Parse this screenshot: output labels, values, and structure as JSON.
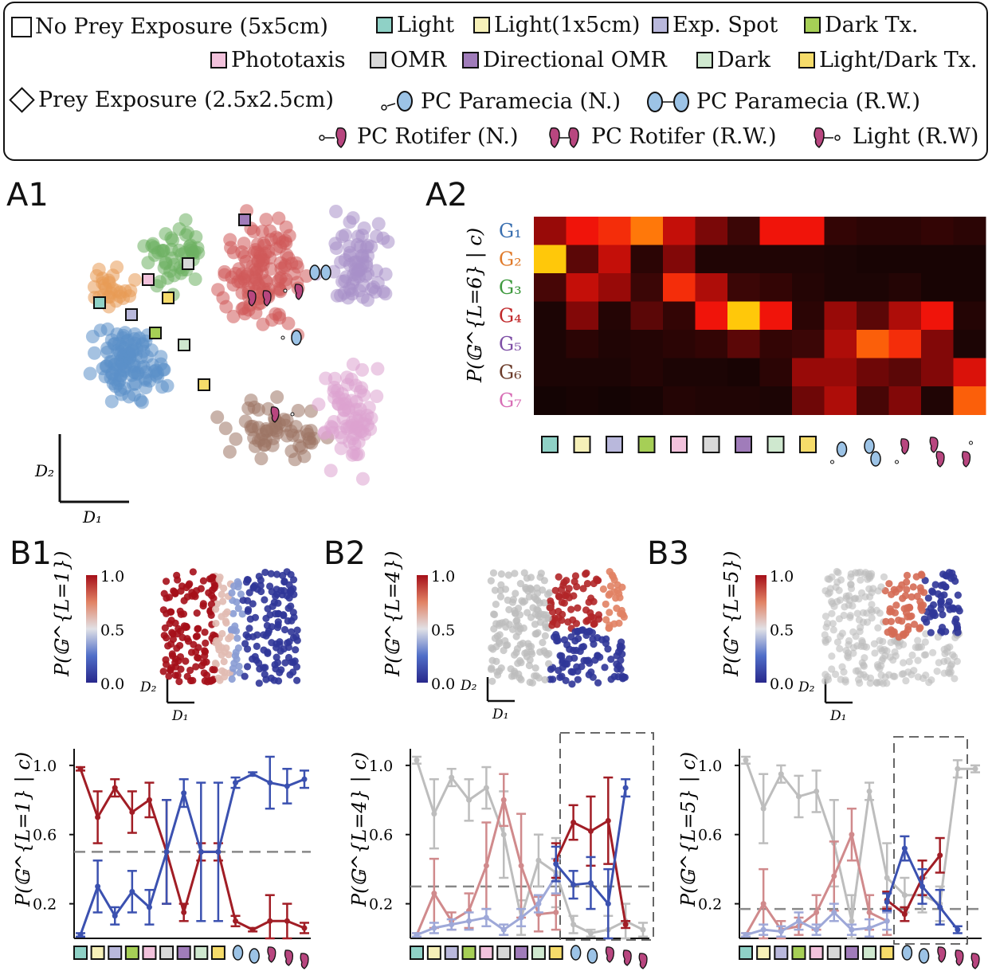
{
  "legend": {
    "no_prey_label": "No Prey Exposure (5x5cm)",
    "prey_label": "Prey Exposure (2.5x2.5cm)",
    "conditions": [
      {
        "label": "Light",
        "color": "#8fd1c6"
      },
      {
        "label": "Light(1x5cm)",
        "color": "#f6f0b8"
      },
      {
        "label": "Exp. Spot",
        "color": "#b9b8dc"
      },
      {
        "label": "Dark Tx.",
        "color": "#a6cf56"
      },
      {
        "label": "Phototaxis",
        "color": "#f2c2dc"
      },
      {
        "label": "OMR",
        "color": "#d8d8d8"
      },
      {
        "label": "Directional OMR",
        "color": "#a07cba"
      },
      {
        "label": "Dark",
        "color": "#cfe8cf"
      },
      {
        "label": "Light/Dark Tx.",
        "color": "#f6dc6a"
      }
    ],
    "prey_conditions": [
      {
        "label": "PC Paramecia (N.)",
        "icon": "paramecia-single-icon"
      },
      {
        "label": "PC Paramecia (R.W.)",
        "icon": "paramecia-pair-icon"
      },
      {
        "label": "PC Rotifer (N.)",
        "icon": "rotifer-single-icon"
      },
      {
        "label": "PC Rotifer (R.W.)",
        "icon": "rotifer-pair-icon"
      },
      {
        "label": "Light (R.W)",
        "icon": "rotifer-light-icon"
      }
    ]
  },
  "panels": {
    "a1": "A1",
    "a2": "A2",
    "b1": "B1",
    "b2": "B2",
    "b3": "B3"
  },
  "axes": {
    "d1": "D₁",
    "d2": "D₂"
  },
  "heatmap": {
    "ylabel": "P(𝔾^{L=6} | c)",
    "rows": [
      "G₁",
      "G₂",
      "G₃",
      "G₄",
      "G₅",
      "G₆",
      "G₇"
    ],
    "row_colors": [
      "#3a6fb0",
      "#e07a2a",
      "#3f9a3f",
      "#c0282a",
      "#7e4fa6",
      "#6b3b2a",
      "#d86fb6"
    ],
    "values": [
      [
        0.35,
        0.55,
        0.6,
        0.75,
        0.45,
        0.28,
        0.12,
        0.55,
        0.55,
        0.1,
        0.08,
        0.08,
        0.1,
        0.08
      ],
      [
        0.95,
        0.2,
        0.45,
        0.08,
        0.3,
        0.05,
        0.05,
        0.05,
        0.05,
        0.04,
        0.03,
        0.03,
        0.03,
        0.03
      ],
      [
        0.15,
        0.45,
        0.35,
        0.12,
        0.6,
        0.4,
        0.12,
        0.1,
        0.06,
        0.04,
        0.04,
        0.06,
        0.03,
        0.03
      ],
      [
        0.04,
        0.3,
        0.06,
        0.2,
        0.1,
        0.55,
        0.95,
        0.55,
        0.08,
        0.35,
        0.2,
        0.4,
        0.55,
        0.06
      ],
      [
        0.04,
        0.08,
        0.05,
        0.06,
        0.08,
        0.1,
        0.2,
        0.1,
        0.12,
        0.4,
        0.7,
        0.6,
        0.3,
        0.04
      ],
      [
        0.04,
        0.04,
        0.04,
        0.06,
        0.04,
        0.04,
        0.03,
        0.08,
        0.35,
        0.35,
        0.25,
        0.2,
        0.3,
        0.5
      ],
      [
        0.02,
        0.03,
        0.02,
        0.03,
        0.06,
        0.05,
        0.05,
        0.04,
        0.25,
        0.4,
        0.15,
        0.3,
        0.05,
        0.7
      ]
    ]
  },
  "colorbars": [
    {
      "label": "P(𝔾^{L=1})",
      "ticks": [
        "1.0",
        "0.5",
        "0.0"
      ]
    },
    {
      "label": "P(𝔾^{L=4})",
      "ticks": [
        "1.0",
        "0.5",
        "0.0"
      ]
    },
    {
      "label": "P(𝔾^{L=5})",
      "ticks": [
        "1.0",
        "0.5",
        "0.0"
      ]
    }
  ],
  "chart_data": [
    {
      "type": "line",
      "panel": "B1",
      "ylabel": "P(𝔾^{L=1} | c)",
      "yticks": [
        "1.0",
        "0.6",
        "0.2"
      ],
      "ylim": [
        0.0,
        1.05
      ],
      "chance_level": 0.5,
      "series": [
        {
          "color": "#a11d25",
          "values": [
            0.98,
            0.7,
            0.87,
            0.73,
            0.8,
            0.5,
            0.15,
            0.5,
            0.5,
            0.1,
            0.05,
            0.1,
            0.1,
            0.06
          ],
          "err": [
            0.01,
            0.15,
            0.05,
            0.12,
            0.1,
            0.3,
            0.05,
            0.05,
            0.05,
            0.03,
            0.01,
            0.15,
            0.1,
            0.03
          ]
        },
        {
          "color": "#3b51b0",
          "values": [
            0.02,
            0.3,
            0.13,
            0.27,
            0.18,
            0.5,
            0.84,
            0.5,
            0.5,
            0.9,
            0.95,
            0.9,
            0.88,
            0.92
          ],
          "err": [
            0.01,
            0.15,
            0.05,
            0.12,
            0.1,
            0.3,
            0.08,
            0.4,
            0.4,
            0.03,
            0.01,
            0.15,
            0.1,
            0.05
          ]
        }
      ]
    },
    {
      "type": "line",
      "panel": "B2",
      "ylabel": "P(𝔾^{L=4} | c)",
      "yticks": [
        "1.0",
        "0.6",
        "0.2"
      ],
      "ylim": [
        0.0,
        1.05
      ],
      "chance_level": 0.3,
      "series": [
        {
          "color": "#bdbdbd",
          "values": [
            1.03,
            0.72,
            0.93,
            0.8,
            0.87,
            0.6,
            0.12,
            0.45,
            0.38,
            0.08,
            0.03,
            0.05,
            0.1,
            0.05
          ],
          "err": [
            0.02,
            0.2,
            0.05,
            0.12,
            0.12,
            0.25,
            0.1,
            0.15,
            0.2,
            0.05,
            0.02,
            0.08,
            0.1,
            0.04
          ]
        },
        {
          "color": "#d08a8c",
          "values": [
            0.02,
            0.26,
            0.1,
            0.16,
            0.42,
            0.8,
            0.42,
            0.14,
            0.15,
            0.0,
            0.0,
            0.0,
            0.0,
            0.0
          ],
          "err": [
            0.01,
            0.2,
            0.05,
            0.1,
            0.25,
            0.15,
            0.3,
            0.1,
            0.1,
            0.0,
            0.0,
            0.0,
            0.0,
            0.0
          ]
        },
        {
          "color": "#9ea8d8",
          "values": [
            0.02,
            0.06,
            0.08,
            0.1,
            0.12,
            0.05,
            0.12,
            0.2,
            0.36,
            0.0,
            0.0,
            0.0,
            0.0,
            0.0
          ],
          "err": [
            0.01,
            0.03,
            0.03,
            0.05,
            0.05,
            0.03,
            0.05,
            0.05,
            0.1,
            0.0,
            0.0,
            0.0,
            0.0,
            0.0
          ]
        },
        {
          "color": "#a11d25",
          "values": [
            null,
            null,
            null,
            null,
            null,
            null,
            null,
            null,
            0.45,
            0.67,
            0.62,
            0.68,
            0.08,
            null
          ],
          "err": [
            0,
            0,
            0,
            0,
            0,
            0,
            0,
            0,
            0.1,
            0.1,
            0.2,
            0.25,
            0.02,
            0
          ]
        },
        {
          "color": "#3b51b0",
          "values": [
            null,
            null,
            null,
            null,
            null,
            null,
            null,
            null,
            0.43,
            0.31,
            0.32,
            0.2,
            0.87,
            null
          ],
          "err": [
            0,
            0,
            0,
            0,
            0,
            0,
            0,
            0,
            0.1,
            0.08,
            0.15,
            0.2,
            0.05,
            0
          ]
        }
      ]
    },
    {
      "type": "line",
      "panel": "B3",
      "ylabel": "P(𝔾^{L=5} | c)",
      "yticks": [
        "1.0",
        "0.6",
        "0.2"
      ],
      "ylim": [
        0.0,
        1.05
      ],
      "chance_level": 0.17,
      "series": [
        {
          "color": "#bdbdbd",
          "values": [
            1.03,
            0.75,
            0.95,
            0.82,
            0.85,
            0.55,
            0.1,
            0.85,
            0.35,
            0.25,
            0.25,
            0.2,
            0.98,
            0.98
          ],
          "err": [
            0.02,
            0.2,
            0.05,
            0.12,
            0.12,
            0.25,
            0.15,
            0.05,
            0.2,
            0.1,
            0.1,
            0.1,
            0.05,
            0.02
          ]
        },
        {
          "color": "#d08a8c",
          "values": [
            0.02,
            0.2,
            0.05,
            0.07,
            0.15,
            0.36,
            0.6,
            0.15,
            0.1,
            0.0,
            0.0,
            0.0,
            0.0,
            0.0
          ],
          "err": [
            0.01,
            0.2,
            0.05,
            0.05,
            0.1,
            0.2,
            0.15,
            0.1,
            0.08,
            0.0,
            0.0,
            0.0,
            0.0,
            0.0
          ]
        },
        {
          "color": "#9ea8d8",
          "values": [
            0.02,
            0.05,
            0.04,
            0.1,
            0.05,
            0.15,
            0.05,
            0.06,
            0.1,
            0.0,
            0.0,
            0.0,
            0.0,
            0.0
          ],
          "err": [
            0.01,
            0.03,
            0.03,
            0.05,
            0.03,
            0.05,
            0.03,
            0.05,
            0.05,
            0.0,
            0.0,
            0.0,
            0.0,
            0.0
          ]
        },
        {
          "color": "#a11d25",
          "values": [
            null,
            null,
            null,
            null,
            null,
            null,
            null,
            null,
            0.22,
            0.14,
            0.35,
            0.48,
            null,
            null
          ],
          "err": [
            0,
            0,
            0,
            0,
            0,
            0,
            0,
            0,
            0.05,
            0.04,
            0.1,
            0.1,
            0,
            0
          ]
        },
        {
          "color": "#3b51b0",
          "values": [
            null,
            null,
            null,
            null,
            null,
            null,
            null,
            null,
            0.21,
            0.52,
            0.3,
            0.18,
            0.05,
            null
          ],
          "err": [
            0,
            0,
            0,
            0,
            0,
            0,
            0,
            0,
            0.05,
            0.07,
            0.1,
            0.1,
            0.02,
            0
          ]
        }
      ]
    }
  ]
}
